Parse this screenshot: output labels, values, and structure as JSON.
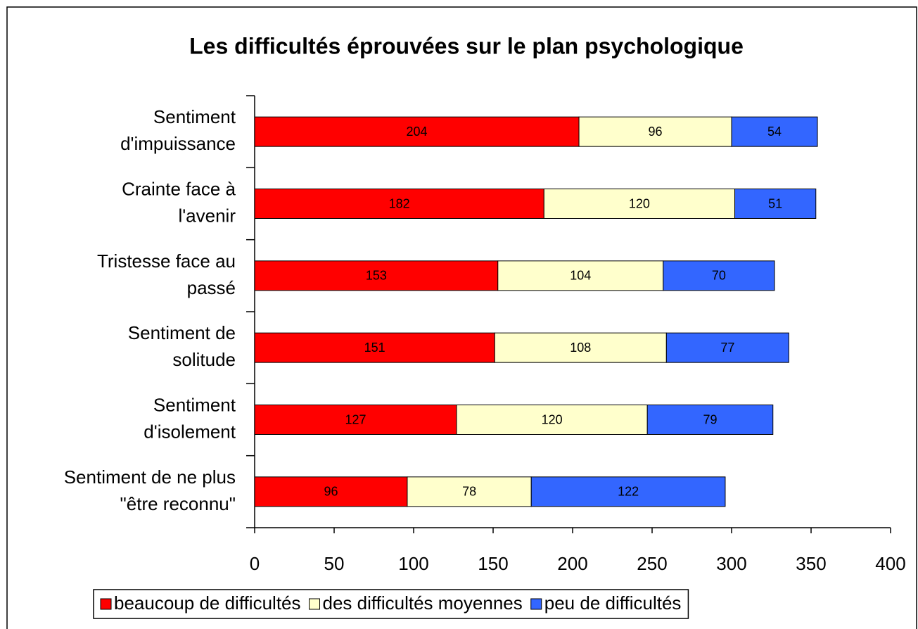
{
  "chart_data": {
    "type": "bar",
    "orientation": "horizontal",
    "stacked": true,
    "title": "Les difficultés éprouvées sur le plan psychologique",
    "categories": [
      "Sentiment\nd'impuissance",
      "Crainte face à\nl'avenir",
      "Tristesse face au\npassé",
      "Sentiment de\nsolitude",
      "Sentiment\nd'isolement",
      "Sentiment de ne plus\n\"être reconnu\""
    ],
    "series": [
      {
        "name": "beaucoup de difficultés",
        "color": "#ff0000",
        "values": [
          204,
          182,
          153,
          151,
          127,
          96
        ]
      },
      {
        "name": "des difficultés moyennes",
        "color": "#ffffcc",
        "values": [
          96,
          120,
          104,
          108,
          120,
          78
        ]
      },
      {
        "name": "peu de difficultés",
        "color": "#3366ff",
        "values": [
          54,
          51,
          70,
          77,
          79,
          122
        ]
      }
    ],
    "xlim": [
      0,
      400
    ],
    "xticks": [
      0,
      50,
      100,
      150,
      200,
      250,
      300,
      350,
      400
    ],
    "grid": false,
    "legend": "bottom"
  }
}
